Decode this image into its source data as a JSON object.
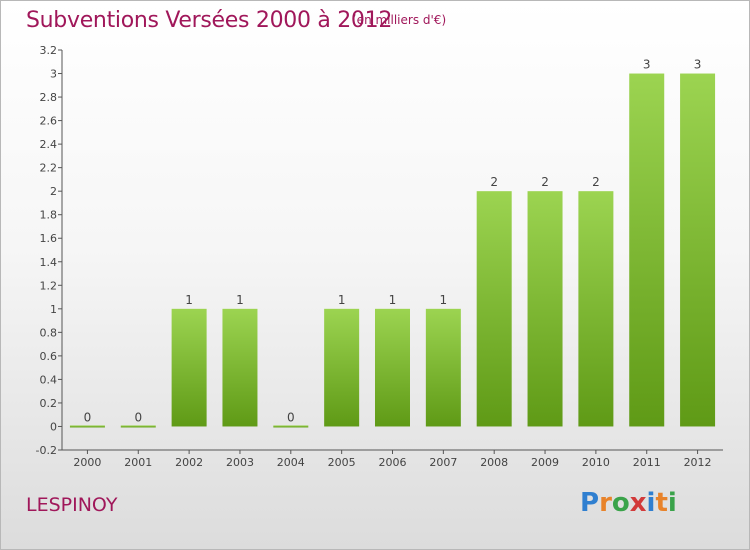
{
  "header": {
    "title": "Subventions Versées 2000 à 2012",
    "subtitle": "(en milliers d'€)"
  },
  "footer": {
    "place": "LESPINOY",
    "logo": [
      "P",
      "r",
      "o",
      "x",
      "i",
      "t",
      "i"
    ],
    "logo_colors": [
      "#2f7fd0",
      "#e8832a",
      "#3aa34a",
      "#d23a3a",
      "#2f7fd0",
      "#e8832a",
      "#3aa34a"
    ]
  },
  "chart_data": {
    "type": "bar",
    "title": "Subventions Versées 2000 à 2012",
    "subtitle": "(en milliers d'€)",
    "categories": [
      "2000",
      "2001",
      "2002",
      "2003",
      "2004",
      "2005",
      "2006",
      "2007",
      "2008",
      "2009",
      "2010",
      "2011",
      "2012"
    ],
    "values": [
      0,
      0,
      1,
      1,
      0,
      1,
      1,
      1,
      2,
      2,
      2,
      3,
      3
    ],
    "value_labels": [
      "0",
      "0",
      "1",
      "1",
      "0",
      "1",
      "1",
      "1",
      "2",
      "2",
      "2",
      "3",
      "3"
    ],
    "yticks": [
      -0.2,
      0,
      0.2,
      0.4,
      0.6,
      0.8,
      1,
      1.2,
      1.4,
      1.6,
      1.8,
      2,
      2.2,
      2.4,
      2.6,
      2.8,
      3,
      3.2
    ],
    "ytick_labels": [
      "-0.2",
      "0",
      "0.2",
      "0.4",
      "0.6",
      "0.8",
      "1",
      "1.2",
      "1.4",
      "1.6",
      "1.8",
      "2",
      "2.2",
      "2.4",
      "2.6",
      "2.8",
      "3",
      "3.2"
    ],
    "ylim": [
      -0.2,
      3.2
    ],
    "grid": false,
    "colors": {
      "bar_top": "#9cd451",
      "bar_bottom": "#5f9a16",
      "axis": "#555555"
    }
  }
}
